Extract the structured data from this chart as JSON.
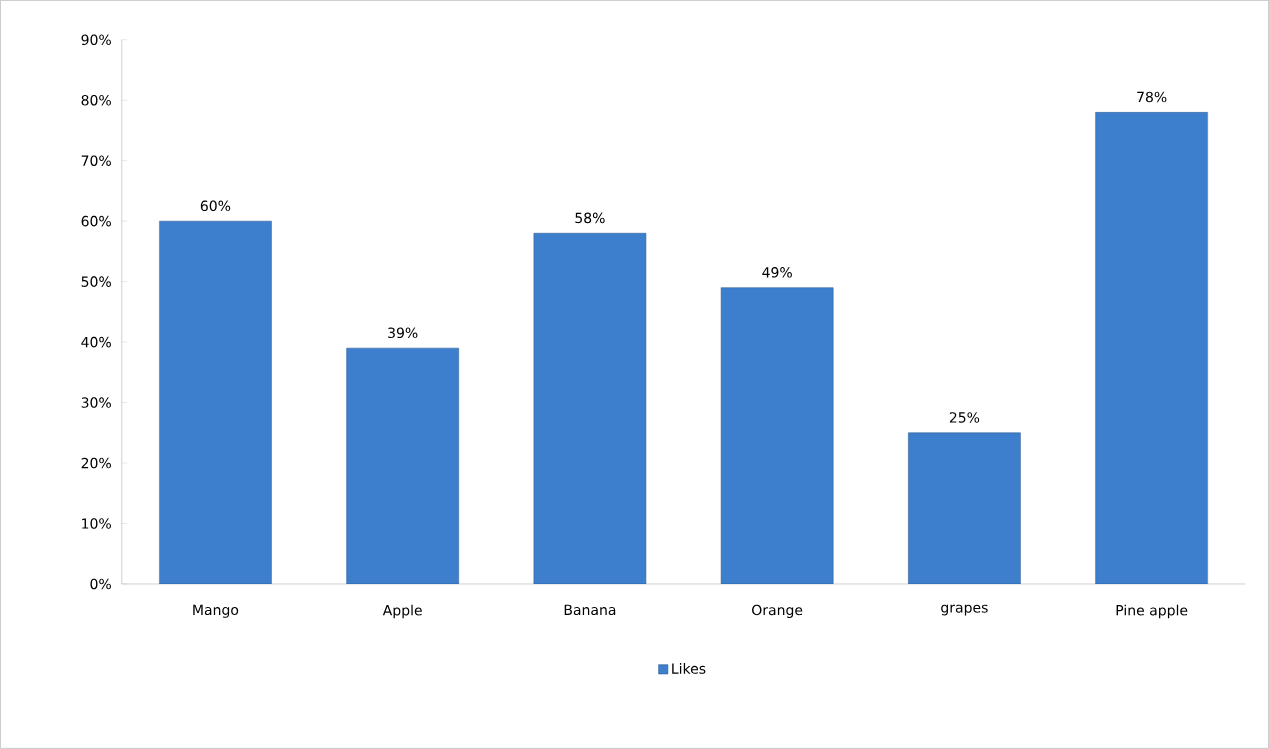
{
  "chart_data": {
    "type": "bar",
    "categories": [
      "Mango",
      "Apple",
      "Banana",
      "Orange",
      "grapes",
      "Pine apple"
    ],
    "series": [
      {
        "name": "Likes",
        "color": "#3d7fcc",
        "values": [
          60,
          39,
          58,
          49,
          25,
          78
        ],
        "value_labels": [
          "60%",
          "39%",
          "58%",
          "49%",
          "25%",
          "78%"
        ]
      }
    ],
    "ylim": [
      0,
      90
    ],
    "yticks": [
      {
        "value": 0,
        "label": "0%"
      },
      {
        "value": 10,
        "label": "10%"
      },
      {
        "value": 20,
        "label": "20%"
      },
      {
        "value": 30,
        "label": "30%"
      },
      {
        "value": 40,
        "label": "40%"
      },
      {
        "value": 50,
        "label": "50%"
      },
      {
        "value": 60,
        "label": "60%"
      },
      {
        "value": 70,
        "label": "70%"
      },
      {
        "value": 80,
        "label": "80%"
      },
      {
        "value": 90,
        "label": "90%"
      }
    ],
    "grid": false,
    "legend": "bottom"
  }
}
